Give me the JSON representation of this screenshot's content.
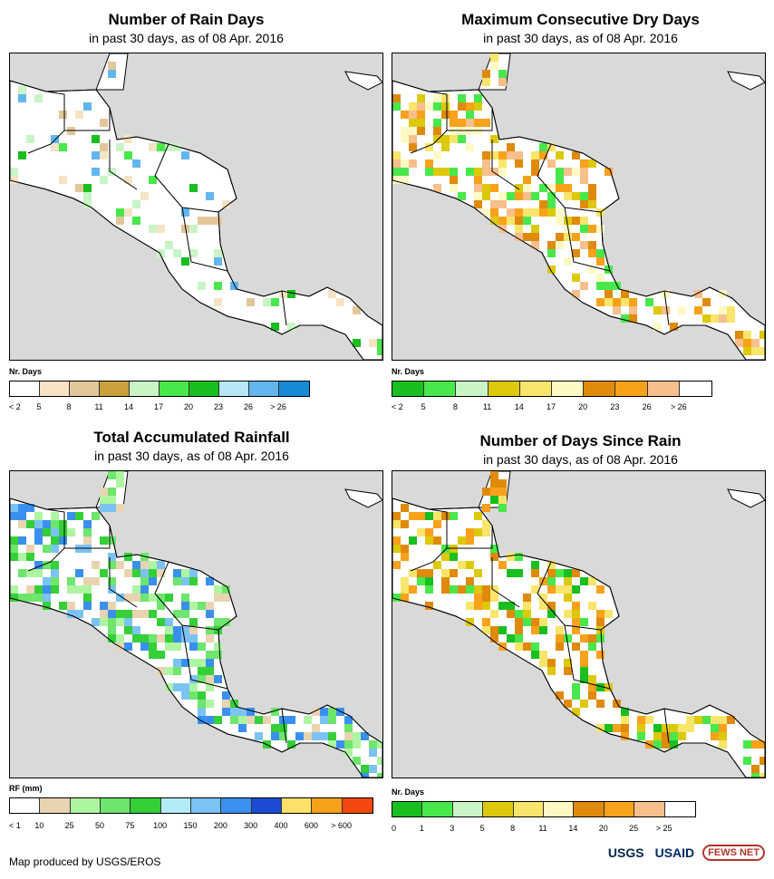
{
  "panels": [
    {
      "id": "rain-days",
      "title": "Number of Rain Days",
      "subtitle": "in past 30 days, as of 08 Apr. 2016",
      "legend_title": "Nr. Days",
      "legend_colors": [
        "#ffffff",
        "#f5e3c4",
        "#e3c79a",
        "#c9a03a",
        "#c9f5c6",
        "#49e84a",
        "#19be1f",
        "#b7e7f6",
        "#63b5ee",
        "#168ad6"
      ],
      "legend_labels": [
        "< 2",
        "5",
        "8",
        "11",
        "14",
        "17",
        "20",
        "23",
        "26",
        "> 26"
      ],
      "dominant": "#ffffff",
      "accents": [
        "#f5e3c4",
        "#e3c79a",
        "#c9f5c6",
        "#49e84a",
        "#19be1f",
        "#63b5ee"
      ]
    },
    {
      "id": "max-dry-days",
      "title": "Maximum Consecutive Dry Days",
      "subtitle": "in past 30 days, as of 08 Apr. 2016",
      "legend_title": "Nr. Days",
      "legend_colors": [
        "#19be1f",
        "#49e84a",
        "#c9f5c6",
        "#dcc90c",
        "#f8e56b",
        "#fdf9c4",
        "#e08a0c",
        "#f8a11b",
        "#f7bf8c",
        "#ffffff"
      ],
      "legend_labels": [
        "< 2",
        "5",
        "8",
        "11",
        "14",
        "17",
        "20",
        "23",
        "26",
        "> 26"
      ],
      "dominant": "#ffffff",
      "accents": [
        "#e08a0c",
        "#f8a11b",
        "#dcc90c",
        "#f8e56b",
        "#fdf9c4",
        "#f7bf8c",
        "#49e84a"
      ]
    },
    {
      "id": "total-rainfall",
      "title": "Total Accumulated Rainfall",
      "subtitle": "in past 30 days, as of 08 Apr. 2016",
      "legend_title": "RF (mm)",
      "legend_colors": [
        "#ffffff",
        "#e9d4b2",
        "#aef5a2",
        "#6ee56c",
        "#35cf37",
        "#b3ecf7",
        "#7ac3f4",
        "#3a90ee",
        "#1b4bd3",
        "#fde06a",
        "#f8a11b",
        "#f4480f"
      ],
      "legend_labels": [
        "< 1",
        "10",
        "25",
        "50",
        "75",
        "100",
        "150",
        "200",
        "300",
        "400",
        "600",
        "> 600"
      ],
      "dominant": "#ffffff",
      "accents": [
        "#e9d4b2",
        "#aef5a2",
        "#6ee56c",
        "#35cf37",
        "#7ac3f4",
        "#3a90ee"
      ]
    },
    {
      "id": "days-since-rain",
      "title": "Number of Days Since Rain",
      "subtitle": "in past 30 days, as of 08 Apr. 2016",
      "legend_title": "Nr. Days",
      "legend_colors": [
        "#19be1f",
        "#49e84a",
        "#c9f5c6",
        "#dcc90c",
        "#f8e56b",
        "#fdf9c4",
        "#e08a0c",
        "#f8a11b",
        "#f7bf8c",
        "#ffffff"
      ],
      "legend_labels": [
        "0",
        "1",
        "3",
        "5",
        "8",
        "11",
        "14",
        "20",
        "25",
        "> 25"
      ],
      "dominant": "#ffffff",
      "accents": [
        "#f8a11b",
        "#e08a0c",
        "#dcc90c",
        "#f8e56b",
        "#19be1f",
        "#49e84a"
      ]
    }
  ],
  "footer": {
    "credit": "Map produced by USGS/EROS",
    "logos": [
      "USGS",
      "USAID",
      "FEWS NET"
    ]
  }
}
